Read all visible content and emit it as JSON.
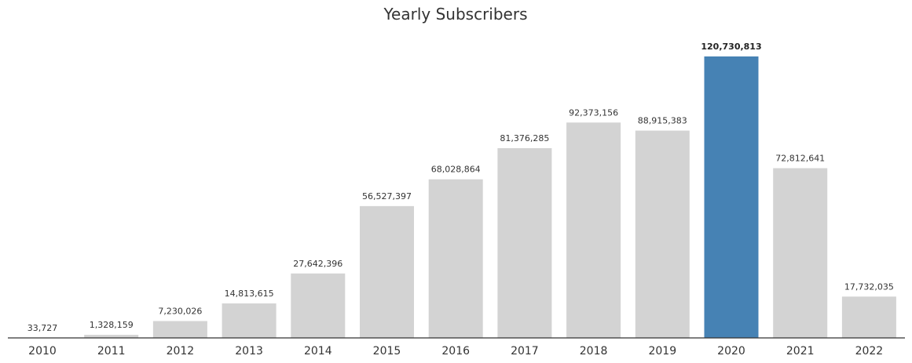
{
  "chart_data": {
    "type": "bar",
    "title": "Yearly Subscribers",
    "xlabel": "",
    "ylabel": "",
    "categories": [
      "2010",
      "2011",
      "2012",
      "2013",
      "2014",
      "2015",
      "2016",
      "2017",
      "2018",
      "2019",
      "2020",
      "2021",
      "2022"
    ],
    "values": [
      33727,
      1328159,
      7230026,
      14813615,
      27642396,
      56527397,
      68028864,
      81376285,
      92373156,
      88915383,
      120730813,
      72812641,
      17732035
    ],
    "value_labels": [
      "33,727",
      "1,328,159",
      "7,230,026",
      "14,813,615",
      "27,642,396",
      "56,527,397",
      "68,028,864",
      "81,376,285",
      "92,373,156",
      "88,915,383",
      "120,730,813",
      "72,812,641",
      "17,732,035"
    ],
    "highlight_index": 10,
    "colors": {
      "default": "#d3d3d3",
      "highlight": "#4682b4",
      "axis": "#333333"
    },
    "ylim": [
      0,
      120730813
    ],
    "grid": false,
    "legend": "none"
  }
}
